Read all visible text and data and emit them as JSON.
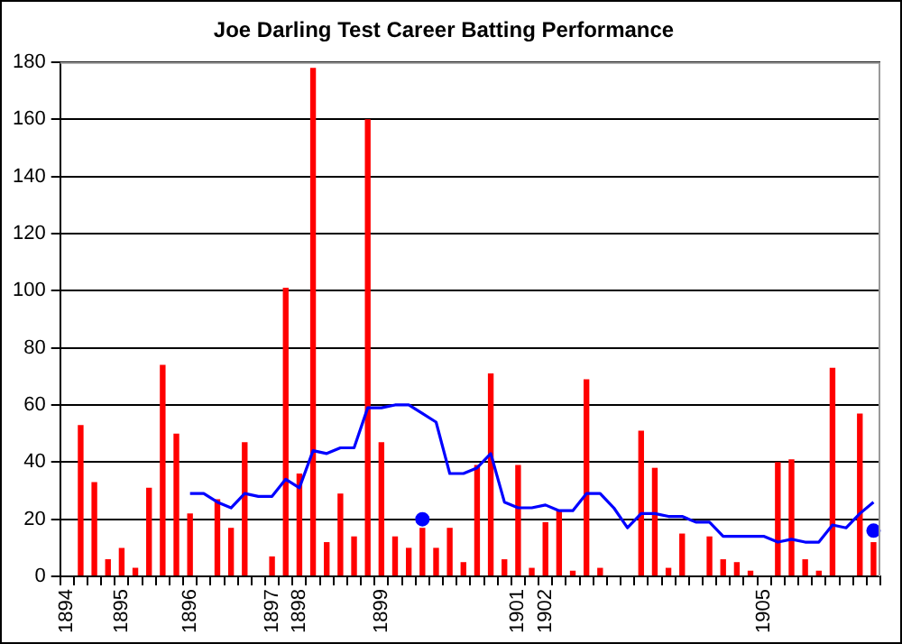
{
  "chart_data": {
    "type": "bar",
    "title": "Joe Darling Test Career Batting Performance",
    "categories": [
      "1894",
      null,
      null,
      null,
      "1895",
      null,
      null,
      null,
      null,
      "1896",
      null,
      null,
      null,
      null,
      null,
      "1897",
      null,
      "1898",
      null,
      null,
      null,
      null,
      null,
      "1899",
      null,
      null,
      null,
      null,
      null,
      null,
      null,
      null,
      null,
      "1901",
      null,
      "1902",
      null,
      null,
      null,
      null,
      null,
      null,
      null,
      null,
      null,
      null,
      null,
      null,
      null,
      null,
      null,
      "1905",
      null,
      null,
      null,
      null,
      null,
      null,
      null,
      null
    ],
    "series": [
      {
        "color": "#ff0000",
        "values": [
          null,
          53,
          33,
          6,
          10,
          3,
          31,
          74,
          50,
          22,
          0,
          27,
          17,
          47,
          0,
          7,
          101,
          36,
          178,
          12,
          29,
          14,
          160,
          47,
          14,
          10,
          17,
          10,
          17,
          5,
          39,
          71,
          6,
          39,
          3,
          19,
          23,
          2,
          69,
          3,
          0,
          0,
          51,
          38,
          3,
          15,
          0,
          14,
          6,
          5,
          2,
          0,
          40,
          41,
          6,
          2,
          73,
          0,
          57,
          12
        ]
      },
      {
        "type": "line",
        "color": "#0000ff",
        "values": [
          null,
          null,
          null,
          null,
          null,
          null,
          null,
          null,
          null,
          29,
          29,
          26,
          24,
          29,
          28,
          28,
          34,
          31,
          44,
          43,
          45,
          45,
          59,
          59,
          60,
          60,
          57,
          54,
          36,
          36,
          38,
          43,
          26,
          24,
          24,
          25,
          23,
          23,
          29,
          29,
          24,
          17,
          22,
          22,
          21,
          21,
          19,
          19,
          14,
          14,
          14,
          14,
          12,
          13,
          12,
          12,
          18,
          17,
          22,
          26
        ]
      },
      {
        "type": "scatter",
        "color": "#0000ff",
        "marker": "circle",
        "values": [
          null,
          null,
          null,
          null,
          null,
          null,
          null,
          null,
          null,
          null,
          null,
          null,
          null,
          null,
          null,
          null,
          null,
          null,
          null,
          null,
          null,
          null,
          null,
          null,
          null,
          null,
          20,
          null,
          null,
          null,
          null,
          null,
          null,
          null,
          null,
          null,
          null,
          null,
          null,
          null,
          null,
          null,
          null,
          null,
          null,
          null,
          null,
          null,
          null,
          null,
          null,
          null,
          null,
          null,
          null,
          null,
          null,
          null,
          null,
          16
        ]
      }
    ],
    "ylim": [
      0,
      180
    ],
    "yticks": [
      0,
      20,
      40,
      60,
      80,
      100,
      120,
      140,
      160,
      180
    ],
    "grid": "y",
    "legend": false
  }
}
